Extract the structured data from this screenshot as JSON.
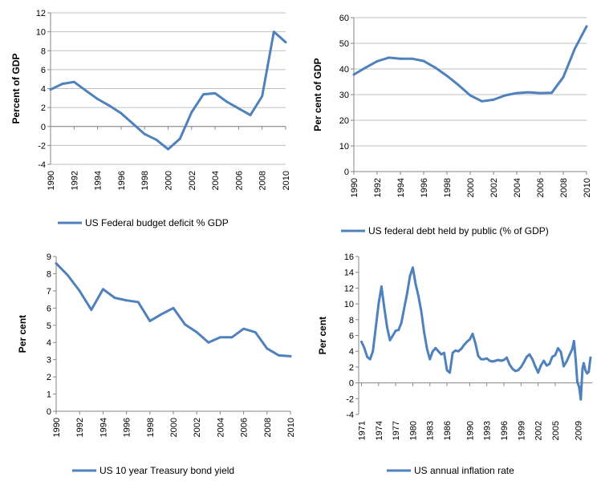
{
  "chart_data": [
    {
      "type": "line",
      "ylabel": "Percent of GDP",
      "ylim": [
        -4,
        12
      ],
      "yticks": [
        -4,
        -2,
        0,
        2,
        4,
        6,
        8,
        10,
        12
      ],
      "x_tick_labels": [
        "1990",
        "1992",
        "1994",
        "1996",
        "1998",
        "2000",
        "2002",
        "2004",
        "2006",
        "2008",
        "2010"
      ],
      "legend_position": "bottom",
      "grid": "horizontal",
      "line_color": "#4F81BD",
      "series": [
        {
          "name": "US Federal budget deficit % GDP",
          "x": [
            1990,
            1991,
            1992,
            1993,
            1994,
            1995,
            1996,
            1997,
            1998,
            1999,
            2000,
            2001,
            2002,
            2003,
            2004,
            2005,
            2006,
            2007,
            2008,
            2009,
            2010
          ],
          "values": [
            3.9,
            4.5,
            4.7,
            3.8,
            2.9,
            2.2,
            1.4,
            0.3,
            -0.8,
            -1.4,
            -2.4,
            -1.3,
            1.5,
            3.4,
            3.5,
            2.6,
            1.9,
            1.2,
            3.2,
            10.0,
            8.9
          ]
        }
      ]
    },
    {
      "type": "line",
      "ylabel": "Per cent of GDP",
      "ylim": [
        0,
        60
      ],
      "yticks": [
        0,
        10,
        20,
        30,
        40,
        50,
        60
      ],
      "x_tick_labels": [
        "1990",
        "1992",
        "1994",
        "1996",
        "1998",
        "2000",
        "2002",
        "2004",
        "2006",
        "2008",
        "2010"
      ],
      "legend_position": "bottom",
      "grid": "horizontal",
      "line_color": "#4F81BD",
      "series": [
        {
          "name": "US federal debt held by public (% of GDP)",
          "x": [
            1990,
            1991,
            1992,
            1993,
            1994,
            1995,
            1996,
            1997,
            1998,
            1999,
            2000,
            2001,
            2002,
            2003,
            2004,
            2005,
            2006,
            2007,
            2008,
            2009,
            2010
          ],
          "values": [
            37.8,
            40.5,
            43.0,
            44.4,
            44.0,
            44.0,
            43.1,
            40.5,
            37.3,
            33.7,
            29.7,
            27.4,
            28.0,
            29.7,
            30.6,
            30.9,
            30.6,
            30.7,
            36.8,
            48.0,
            56.6
          ]
        }
      ]
    },
    {
      "type": "line",
      "ylabel": "Per cent",
      "ylim": [
        0,
        9
      ],
      "yticks": [
        0,
        1,
        2,
        3,
        4,
        5,
        6,
        7,
        8,
        9
      ],
      "x_tick_labels": [
        "1990",
        "1992",
        "1994",
        "1996",
        "1998",
        "2000",
        "2002",
        "2004",
        "2006",
        "2008",
        "2010"
      ],
      "legend_position": "bottom",
      "grid": "none",
      "line_color": "#4F81BD",
      "series": [
        {
          "name": "US 10 year Treasury bond yield",
          "x": [
            1990,
            1991,
            1992,
            1993,
            1994,
            1995,
            1996,
            1997,
            1998,
            1999,
            2000,
            2001,
            2002,
            2003,
            2004,
            2005,
            2006,
            2007,
            2008,
            2009,
            2010
          ],
          "values": [
            8.6,
            7.9,
            7.0,
            5.9,
            7.1,
            6.6,
            6.45,
            6.35,
            5.25,
            5.65,
            6.0,
            5.05,
            4.6,
            4.0,
            4.3,
            4.3,
            4.8,
            4.6,
            3.65,
            3.25,
            3.2
          ]
        }
      ]
    },
    {
      "type": "line",
      "ylabel": "Per cent",
      "ylim": [
        -4,
        16
      ],
      "yticks": [
        -4,
        -2,
        0,
        2,
        4,
        6,
        8,
        10,
        12,
        14,
        16
      ],
      "xlim": [
        1970.5,
        2011.5
      ],
      "x_tick_labels": [
        "1971",
        "1974",
        "1977",
        "1980",
        "1983",
        "1986",
        "1990",
        "1993",
        "1996",
        "1999",
        "2002",
        "2005",
        "2009"
      ],
      "legend_position": "bottom",
      "grid": "none",
      "line_color": "#4F81BD",
      "series": [
        {
          "name": "US annual inflation rate",
          "x": [
            1971,
            1971.5,
            1972,
            1972.5,
            1973,
            1973.5,
            1974,
            1974.5,
            1975,
            1975.5,
            1976,
            1976.5,
            1977,
            1977.5,
            1978,
            1978.5,
            1979,
            1979.5,
            1980,
            1980.5,
            1981,
            1981.5,
            1982,
            1982.5,
            1983,
            1983.5,
            1984,
            1984.5,
            1985,
            1985.5,
            1986,
            1986.5,
            1987,
            1987.5,
            1988,
            1988.5,
            1989,
            1989.5,
            1990,
            1990.5,
            1991,
            1991.5,
            1992,
            1992.5,
            1993,
            1993.5,
            1994,
            1994.5,
            1995,
            1995.5,
            1996,
            1996.5,
            1997,
            1997.5,
            1998,
            1998.5,
            1999,
            1999.5,
            2000,
            2000.5,
            2001,
            2001.5,
            2002,
            2002.5,
            2003,
            2003.5,
            2004,
            2004.5,
            2005,
            2005.5,
            2006,
            2006.5,
            2007,
            2007.5,
            2008,
            2008.3,
            2008.6,
            2008.9,
            2009.2,
            2009.5,
            2009.8,
            2010,
            2010.3,
            2010.6,
            2010.9,
            2011.2
          ],
          "values": [
            5.2,
            4.4,
            3.3,
            3.0,
            4.0,
            7.0,
            10.0,
            12.2,
            9.5,
            7.0,
            5.4,
            6.0,
            6.6,
            6.7,
            7.6,
            9.5,
            11.3,
            13.5,
            14.6,
            12.5,
            11.0,
            9.0,
            6.4,
            4.3,
            3.0,
            4.0,
            4.4,
            4.0,
            3.6,
            3.8,
            1.6,
            1.3,
            3.8,
            4.1,
            4.0,
            4.3,
            4.8,
            5.2,
            5.5,
            6.2,
            5.0,
            3.4,
            3.0,
            3.0,
            3.1,
            2.8,
            2.7,
            2.8,
            2.9,
            2.8,
            2.9,
            3.2,
            2.3,
            1.8,
            1.5,
            1.6,
            2.0,
            2.6,
            3.3,
            3.6,
            3.0,
            2.1,
            1.3,
            2.2,
            2.8,
            2.2,
            2.4,
            3.3,
            3.5,
            4.4,
            3.9,
            2.1,
            2.7,
            3.5,
            4.3,
            5.3,
            3.0,
            0.1,
            -0.5,
            -2.1,
            1.8,
            2.5,
            1.6,
            1.2,
            1.4,
            3.2
          ]
        }
      ]
    }
  ]
}
